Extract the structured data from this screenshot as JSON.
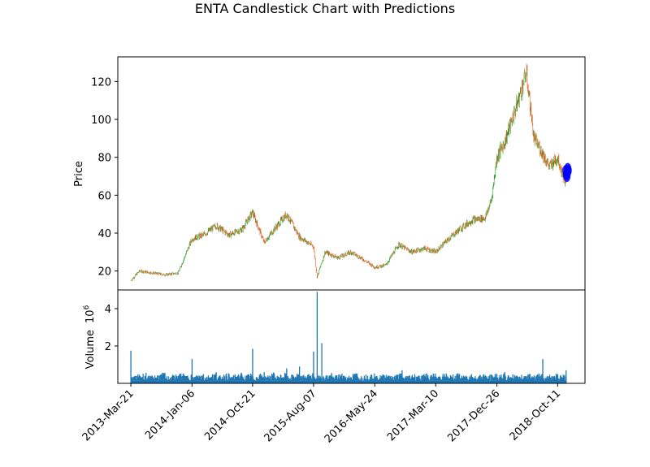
{
  "chart_data": [
    {
      "type": "candlestick",
      "title": "ENTA Candlestick Chart with Predictions",
      "ylabel": "Price",
      "ylim": [
        10,
        133
      ],
      "yticks": [
        20,
        40,
        60,
        80,
        100,
        120
      ],
      "up_color": "#2ca02c",
      "down_color": "#ff5722",
      "prediction_color": "#0000ff",
      "series": [
        {
          "name": "",
          "x": [
            "2013-03-21",
            "2013-05-01",
            "2013-07-01",
            "2013-09-01",
            "2013-11-01",
            "2014-01-06",
            "2014-03-01",
            "2014-05-01",
            "2014-07-01",
            "2014-09-01",
            "2014-10-21",
            "2014-12-15",
            "2015-02-01",
            "2015-04-01",
            "2015-06-01",
            "2015-08-07",
            "2015-08-24",
            "2015-10-01",
            "2015-12-01",
            "2016-02-01",
            "2016-04-01",
            "2016-05-24",
            "2016-07-15",
            "2016-09-15",
            "2016-11-15",
            "2017-01-15",
            "2017-03-10",
            "2017-05-01",
            "2017-07-01",
            "2017-09-01",
            "2017-11-01",
            "2017-12-01",
            "2017-12-26",
            "2018-02-01",
            "2018-04-01",
            "2018-05-15",
            "2018-06-20",
            "2018-08-01",
            "2018-09-01",
            "2018-10-11",
            "2018-11-01",
            "2018-11-20"
          ],
          "close": [
            15,
            20,
            19,
            18,
            19,
            37,
            39,
            44,
            39,
            42,
            51,
            35,
            42,
            50,
            38,
            33,
            17,
            30,
            27,
            30,
            26,
            22,
            23,
            34,
            30,
            32,
            30,
            36,
            42,
            47,
            48,
            58,
            80,
            88,
            108,
            125,
            90,
            82,
            75,
            80,
            72,
            66
          ]
        },
        {
          "name": "",
          "x": [
            "2018-11-20",
            "2018-11-22",
            "2018-11-24",
            "2018-11-26",
            "2018-11-28",
            "2018-11-30"
          ],
          "close": [
            73,
            71,
            70,
            72,
            74,
            73
          ]
        }
      ]
    },
    {
      "type": "bar",
      "ylabel": "Volume",
      "scale_label": "1e6",
      "ylim": [
        0,
        5
      ],
      "yticks": [
        2,
        4
      ],
      "color": "#1f77b4",
      "x_tick_labels": [
        "2013-Mar-21",
        "2014-Jan-06",
        "2014-Oct-21",
        "2015-Aug-07",
        "2016-May-24",
        "2017-Mar-10",
        "2017-Dec-26",
        "2018-Oct-11"
      ],
      "x_ticks": [
        "2013-03-21",
        "2014-01-06",
        "2014-10-21",
        "2015-08-07",
        "2016-05-24",
        "2017-03-10",
        "2017-12-26",
        "2018-10-11"
      ],
      "series": [
        {
          "name": "",
          "x": [
            "2013-03-21",
            "2013-06-01",
            "2013-09-01",
            "2013-12-01",
            "2014-01-06",
            "2014-03-01",
            "2014-05-01",
            "2014-07-01",
            "2014-09-01",
            "2014-10-21",
            "2014-12-15",
            "2015-02-01",
            "2015-04-01",
            "2015-06-01",
            "2015-07-15",
            "2015-08-07",
            "2015-08-24",
            "2015-09-15",
            "2015-11-01",
            "2016-01-01",
            "2016-03-01",
            "2016-05-24",
            "2016-08-01",
            "2016-10-01",
            "2016-12-01",
            "2017-02-01",
            "2017-03-10",
            "2017-05-01",
            "2017-07-01",
            "2017-09-01",
            "2017-11-01",
            "2017-12-26",
            "2018-02-01",
            "2018-04-01",
            "2018-06-01",
            "2018-08-01",
            "2018-10-11",
            "2018-11-20"
          ],
          "values": [
            1.75,
            0.15,
            0.2,
            0.4,
            1.3,
            0.5,
            0.6,
            0.5,
            0.4,
            1.85,
            0.6,
            0.5,
            0.8,
            0.9,
            0.5,
            1.7,
            4.9,
            2.15,
            0.5,
            0.4,
            0.4,
            0.35,
            0.4,
            0.7,
            0.4,
            0.4,
            0.35,
            0.4,
            0.5,
            0.35,
            0.4,
            0.5,
            0.6,
            0.4,
            0.5,
            1.3,
            0.5,
            0.7
          ]
        }
      ]
    }
  ]
}
